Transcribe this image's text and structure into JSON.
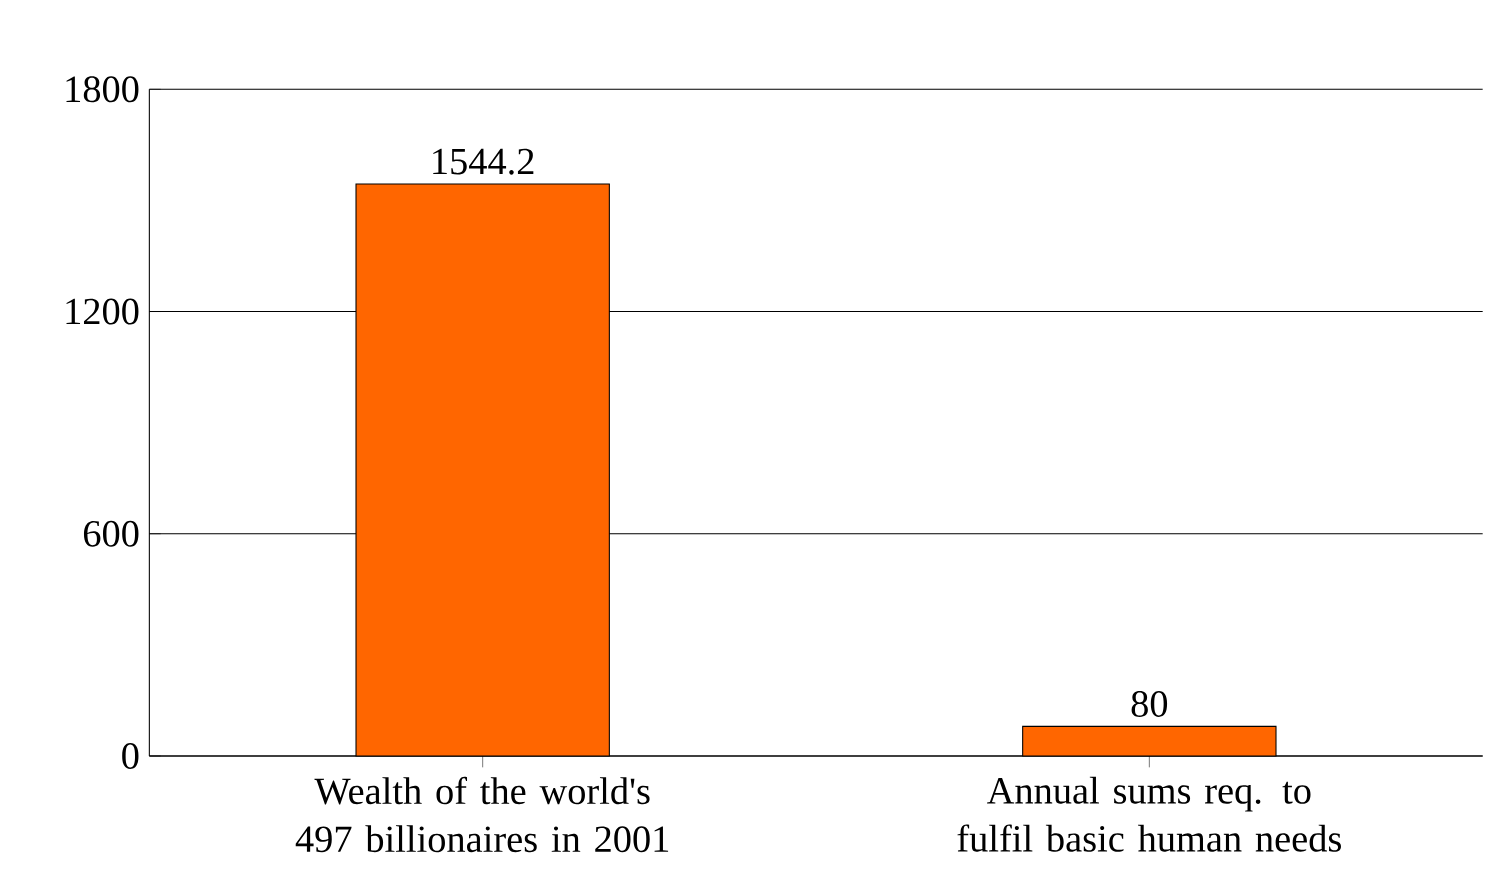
{
  "chart_data": {
    "type": "bar",
    "categories": [
      "Wealth of the world's 497 billionaires in 2001",
      "Annual sums req. to fulfil basic human needs"
    ],
    "values": [
      1544.2,
      80
    ],
    "color": "#ff6600",
    "data_labels": true,
    "ylim": [
      0,
      1800
    ],
    "yticks": [
      0,
      600,
      1200,
      1800
    ],
    "grid": "y"
  }
}
